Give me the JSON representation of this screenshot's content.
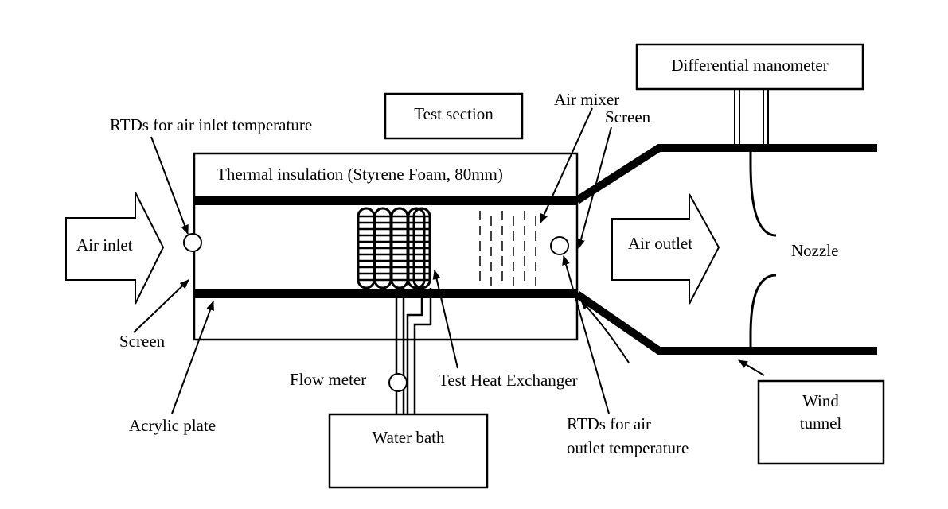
{
  "labels": {
    "differential_manometer": "Differential manometer",
    "test_section": "Test section",
    "air_mixer": "Air mixer",
    "screen_top": "Screen",
    "rtds_inlet": "RTDs for air inlet temperature",
    "thermal_insulation": "Thermal insulation (Styrene Foam, 80mm)",
    "air_inlet": "Air inlet",
    "air_outlet": "Air outlet",
    "nozzle": "Nozzle",
    "screen_bottom": "Screen",
    "acrylic_plate": "Acrylic plate",
    "flow_meter": "Flow meter",
    "test_heat_exchanger": "Test Heat Exchanger",
    "water_bath": "Water bath",
    "rtds_outlet_line1": "RTDs for air",
    "rtds_outlet_line2": "outlet temperature",
    "wind_tunnel_line1": "Wind",
    "wind_tunnel_line2": "tunnel"
  }
}
